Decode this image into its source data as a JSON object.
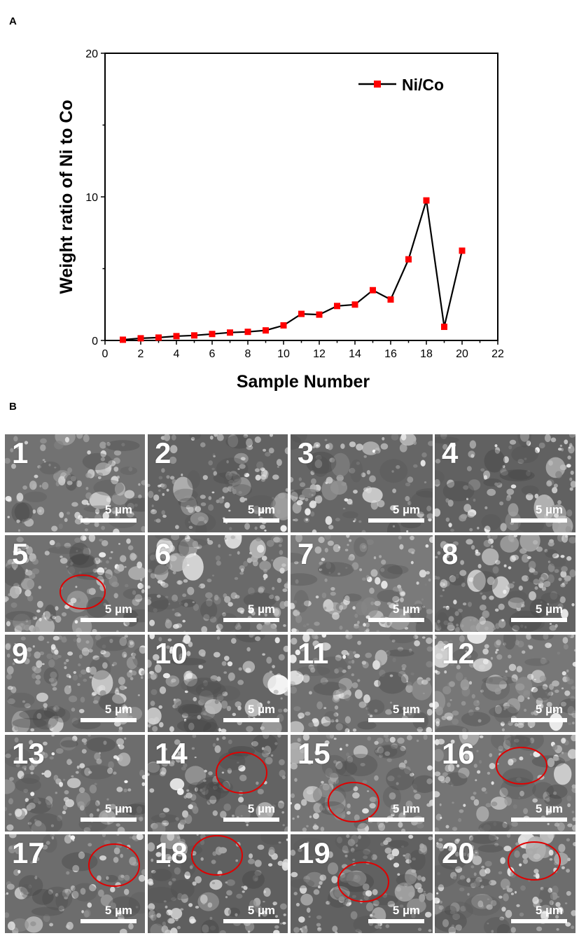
{
  "panel_a_label": "A",
  "panel_b_label": "B",
  "chart_data": {
    "type": "line",
    "title": "",
    "xlabel": "Sample Number",
    "ylabel": "Weight ratio of Ni to Co",
    "xlim": [
      0,
      22
    ],
    "ylim": [
      0,
      20
    ],
    "x_ticks": [
      0,
      2,
      4,
      6,
      8,
      10,
      12,
      14,
      16,
      18,
      20,
      22
    ],
    "y_ticks": [
      0,
      10,
      20
    ],
    "legend_position": "top-right",
    "grid": false,
    "series": [
      {
        "name": "Ni/Co",
        "line_color": "#000000",
        "marker_color": "#ff0000",
        "marker": "square",
        "x": [
          1,
          2,
          3,
          4,
          5,
          6,
          7,
          8,
          9,
          10,
          11,
          12,
          13,
          14,
          15,
          16,
          17,
          18,
          19,
          20
        ],
        "y": [
          0.05,
          0.15,
          0.2,
          0.3,
          0.35,
          0.45,
          0.55,
          0.6,
          0.7,
          1.05,
          1.85,
          1.8,
          2.4,
          2.5,
          3.5,
          2.85,
          5.65,
          9.75,
          0.95,
          6.25
        ]
      }
    ]
  },
  "sem_panels": {
    "scale_text": "5 µm",
    "tiles": [
      {
        "num": "1",
        "circle": false
      },
      {
        "num": "2",
        "circle": false
      },
      {
        "num": "3",
        "circle": false
      },
      {
        "num": "4",
        "circle": false
      },
      {
        "num": "5",
        "circle": true
      },
      {
        "num": "6",
        "circle": false
      },
      {
        "num": "7",
        "circle": false
      },
      {
        "num": "8",
        "circle": false
      },
      {
        "num": "9",
        "circle": false
      },
      {
        "num": "10",
        "circle": false
      },
      {
        "num": "11",
        "circle": false
      },
      {
        "num": "12",
        "circle": false
      },
      {
        "num": "13",
        "circle": false
      },
      {
        "num": "14",
        "circle": true
      },
      {
        "num": "15",
        "circle": true
      },
      {
        "num": "16",
        "circle": true
      },
      {
        "num": "17",
        "circle": true
      },
      {
        "num": "18",
        "circle": true
      },
      {
        "num": "19",
        "circle": true
      },
      {
        "num": "20",
        "circle": true
      }
    ],
    "circle_color": "#e00000"
  }
}
